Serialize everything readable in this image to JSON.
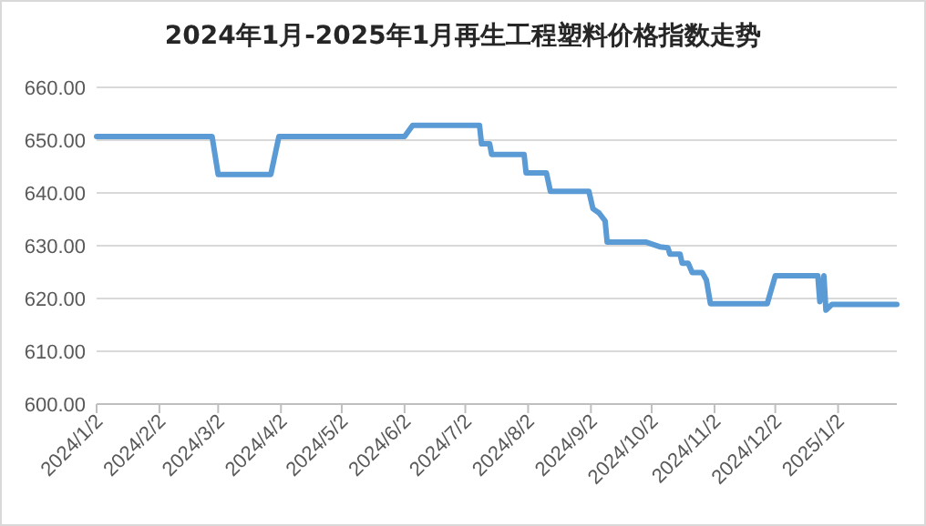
{
  "chart_data": {
    "type": "line",
    "title": "2024年1月-2025年1月再生工程塑料价格指数走势",
    "xlim": [
      "2024-01-02",
      "2025-01-31"
    ],
    "xticks": [
      {
        "value": "2024-01-02",
        "label": "2024/1/2"
      },
      {
        "value": "2024-02-02",
        "label": "2024/2/2"
      },
      {
        "value": "2024-03-02",
        "label": "2024/3/2"
      },
      {
        "value": "2024-04-02",
        "label": "2024/4/2"
      },
      {
        "value": "2024-05-02",
        "label": "2024/5/2"
      },
      {
        "value": "2024-06-02",
        "label": "2024/6/2"
      },
      {
        "value": "2024-07-02",
        "label": "2024/7/2"
      },
      {
        "value": "2024-08-02",
        "label": "2024/8/2"
      },
      {
        "value": "2024-09-02",
        "label": "2024/9/2"
      },
      {
        "value": "2024-10-02",
        "label": "2024/10/2"
      },
      {
        "value": "2024-11-02",
        "label": "2024/11/2"
      },
      {
        "value": "2024-12-02",
        "label": "2024/12/2"
      },
      {
        "value": "2025-01-02",
        "label": "2025/1/2"
      }
    ],
    "ylim": [
      600,
      660
    ],
    "yticks": [
      {
        "value": 600,
        "label": "600.00"
      },
      {
        "value": 610,
        "label": "610.00"
      },
      {
        "value": 620,
        "label": "620.00"
      },
      {
        "value": 630,
        "label": "630.00"
      },
      {
        "value": 640,
        "label": "640.00"
      },
      {
        "value": 650,
        "label": "650.00"
      },
      {
        "value": 660,
        "label": "660.00"
      }
    ],
    "grid": "y",
    "marker": "none",
    "line_style": "solid",
    "series": [
      {
        "color": "#5b9bd5",
        "x": [
          "2024-01-02",
          "2024-02-28",
          "2024-03-02",
          "2024-03-28",
          "2024-04-01",
          "2024-06-02",
          "2024-06-06",
          "2024-07-09",
          "2024-07-10",
          "2024-07-14",
          "2024-07-15",
          "2024-07-31",
          "2024-08-01",
          "2024-08-11",
          "2024-08-13",
          "2024-09-01",
          "2024-09-03",
          "2024-09-06",
          "2024-09-09",
          "2024-09-10",
          "2024-09-29",
          "2024-10-06",
          "2024-10-10",
          "2024-10-11",
          "2024-10-16",
          "2024-10-17",
          "2024-10-20",
          "2024-10-22",
          "2024-10-27",
          "2024-10-29",
          "2024-10-31",
          "2024-11-28",
          "2024-12-02",
          "2024-12-23",
          "2024-12-24",
          "2024-12-26",
          "2024-12-27",
          "2024-12-30",
          "2025-01-31"
        ],
        "values": [
          650.7,
          650.7,
          643.5,
          643.5,
          650.7,
          650.7,
          652.8,
          652.8,
          649.3,
          649.3,
          647.3,
          647.3,
          643.8,
          643.8,
          640.3,
          640.3,
          637.0,
          636.2,
          634.7,
          630.7,
          630.7,
          629.8,
          629.6,
          628.4,
          628.4,
          626.7,
          626.7,
          624.9,
          624.9,
          623.5,
          619.0,
          619.0,
          624.3,
          624.3,
          619.4,
          624.3,
          617.8,
          618.9,
          618.9
        ]
      }
    ]
  }
}
